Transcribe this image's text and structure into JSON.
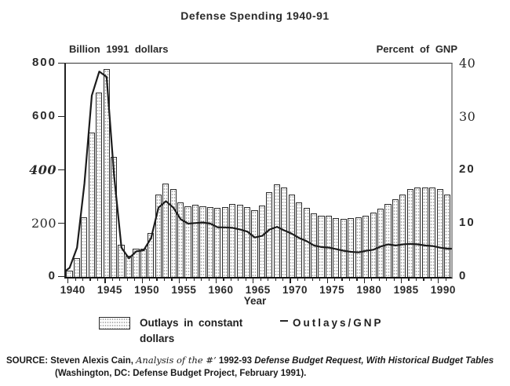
{
  "title": "Defense Spending  1940-91",
  "left_axis": {
    "unit_label": "Billion 1991 dollars",
    "ticks": [
      "800",
      "600",
      "400",
      "200",
      "0"
    ],
    "min": 0,
    "max": 800
  },
  "right_axis": {
    "unit_label": "Percent of GNP",
    "ticks": [
      "40",
      "30",
      "20",
      "10",
      "0"
    ],
    "min": 0,
    "max": 40
  },
  "x_axis": {
    "title": "Year",
    "labeled_years": [
      "1940",
      "1945",
      "1950",
      "1955",
      "1960",
      "1965",
      "1970",
      "1975",
      "1980",
      "1985",
      "1990"
    ]
  },
  "legend": {
    "bar_label_line1": "Outlays in constant",
    "bar_label_line2": "dollars",
    "line_label": "Outlays/GNP"
  },
  "source": {
    "label": "SOURCE:",
    "part_author": "Steven Alexis Cain,",
    "part_title_italic": "Analysis of the #’",
    "part_years_bold": "1992-93",
    "part_subtitle_bold_italic": "Defense Budget Request, With Historical Budget Tables",
    "line2": "(Washington, DC: Defense Budget Project, February 1991)."
  },
  "chart_data": {
    "type": "bar",
    "title": "Defense Spending 1940-91",
    "xlabel": "Year",
    "x": [
      1940,
      1941,
      1942,
      1943,
      1944,
      1945,
      1946,
      1947,
      1948,
      1949,
      1950,
      1951,
      1952,
      1953,
      1954,
      1955,
      1956,
      1957,
      1958,
      1959,
      1960,
      1961,
      1962,
      1963,
      1964,
      1965,
      1966,
      1967,
      1968,
      1969,
      1970,
      1971,
      1972,
      1973,
      1974,
      1975,
      1976,
      1977,
      1978,
      1979,
      1980,
      1981,
      1982,
      1983,
      1984,
      1985,
      1986,
      1987,
      1988,
      1989,
      1990,
      1991
    ],
    "series": [
      {
        "name": "Outlays in constant dollars",
        "type": "bar",
        "axis": "left",
        "ylabel": "Billion 1991 dollars",
        "ylim": [
          0,
          800
        ],
        "values": [
          25,
          70,
          225,
          540,
          690,
          780,
          450,
          120,
          80,
          105,
          105,
          165,
          310,
          350,
          330,
          280,
          265,
          270,
          265,
          262,
          258,
          262,
          275,
          270,
          262,
          250,
          268,
          318,
          348,
          335,
          308,
          278,
          258,
          237,
          230,
          228,
          220,
          218,
          220,
          224,
          230,
          240,
          255,
          275,
          292,
          310,
          330,
          335,
          335,
          335,
          330,
          310
        ]
      },
      {
        "name": "Outlays/GNP",
        "type": "line",
        "axis": "right",
        "ylabel": "Percent of GNP",
        "ylim": [
          0,
          40
        ],
        "values": [
          1.7,
          5.5,
          17.5,
          34.0,
          38.5,
          37.5,
          19.0,
          5.5,
          3.5,
          4.8,
          5.0,
          7.3,
          13.0,
          14.2,
          13.0,
          10.8,
          10.0,
          10.1,
          10.2,
          10.0,
          9.3,
          9.3,
          9.2,
          8.9,
          8.5,
          7.4,
          7.7,
          8.9,
          9.4,
          8.7,
          8.1,
          7.3,
          6.7,
          5.9,
          5.6,
          5.5,
          5.2,
          4.9,
          4.7,
          4.6,
          4.9,
          5.1,
          5.7,
          6.1,
          5.9,
          6.1,
          6.2,
          6.1,
          5.9,
          5.8,
          5.5,
          5.3
        ]
      }
    ],
    "x_tick_label_step": 5,
    "grid": false,
    "legend_position": "bottom"
  }
}
